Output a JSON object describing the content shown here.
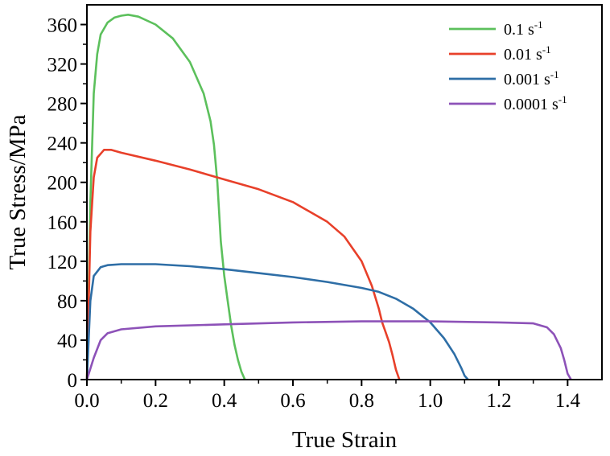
{
  "chart_data": {
    "type": "line",
    "title": "",
    "xlabel": "True Strain",
    "ylabel": "True Stress/MPa",
    "xlim": [
      0,
      1.5
    ],
    "ylim": [
      0,
      380
    ],
    "xticks": [
      "0.0",
      "0.2",
      "0.4",
      "0.6",
      "0.8",
      "1.0",
      "1.2",
      "1.4"
    ],
    "yticks": [
      "0",
      "40",
      "80",
      "120",
      "160",
      "200",
      "240",
      "280",
      "320",
      "360"
    ],
    "grid": false,
    "legend_position": "top-right",
    "series": [
      {
        "name": "0.1 s",
        "name_sup": "-1",
        "color": "#5cc05c",
        "x": [
          0.0,
          0.01,
          0.02,
          0.03,
          0.04,
          0.06,
          0.08,
          0.1,
          0.12,
          0.15,
          0.2,
          0.25,
          0.3,
          0.34,
          0.36,
          0.37,
          0.38,
          0.39,
          0.4,
          0.41,
          0.42,
          0.43,
          0.44,
          0.45,
          0.46
        ],
        "y": [
          0,
          180,
          290,
          330,
          350,
          362,
          367,
          369,
          370,
          368,
          360,
          346,
          322,
          290,
          262,
          238,
          200,
          140,
          105,
          80,
          55,
          35,
          20,
          8,
          0
        ]
      },
      {
        "name": "0.01 s",
        "name_sup": "-1",
        "color": "#e8402a",
        "x": [
          0.0,
          0.01,
          0.02,
          0.03,
          0.05,
          0.07,
          0.1,
          0.2,
          0.3,
          0.4,
          0.5,
          0.6,
          0.7,
          0.75,
          0.8,
          0.83,
          0.85,
          0.86,
          0.87,
          0.88,
          0.89,
          0.9,
          0.91
        ],
        "y": [
          0,
          150,
          205,
          225,
          233,
          233,
          230,
          222,
          213,
          203,
          193,
          180,
          160,
          145,
          120,
          95,
          72,
          58,
          48,
          38,
          25,
          10,
          0
        ]
      },
      {
        "name": "0.001 s",
        "name_sup": "-1",
        "color": "#2e6ea6",
        "x": [
          0.0,
          0.01,
          0.02,
          0.04,
          0.06,
          0.1,
          0.2,
          0.3,
          0.4,
          0.5,
          0.6,
          0.7,
          0.8,
          0.85,
          0.9,
          0.95,
          1.0,
          1.04,
          1.07,
          1.09,
          1.1,
          1.11
        ],
        "y": [
          0,
          80,
          105,
          114,
          116,
          117,
          117,
          115,
          112,
          108,
          104,
          99,
          93,
          89,
          82,
          72,
          58,
          42,
          26,
          12,
          4,
          0
        ]
      },
      {
        "name": "0.0001 s",
        "name_sup": "-1",
        "color": "#8d52b8",
        "x": [
          0.0,
          0.02,
          0.04,
          0.06,
          0.1,
          0.2,
          0.4,
          0.6,
          0.8,
          1.0,
          1.2,
          1.3,
          1.34,
          1.36,
          1.38,
          1.39,
          1.4,
          1.41
        ],
        "y": [
          0,
          22,
          40,
          47,
          51,
          54,
          56,
          58,
          59,
          59,
          58,
          57,
          53,
          46,
          32,
          20,
          6,
          0
        ]
      }
    ]
  }
}
